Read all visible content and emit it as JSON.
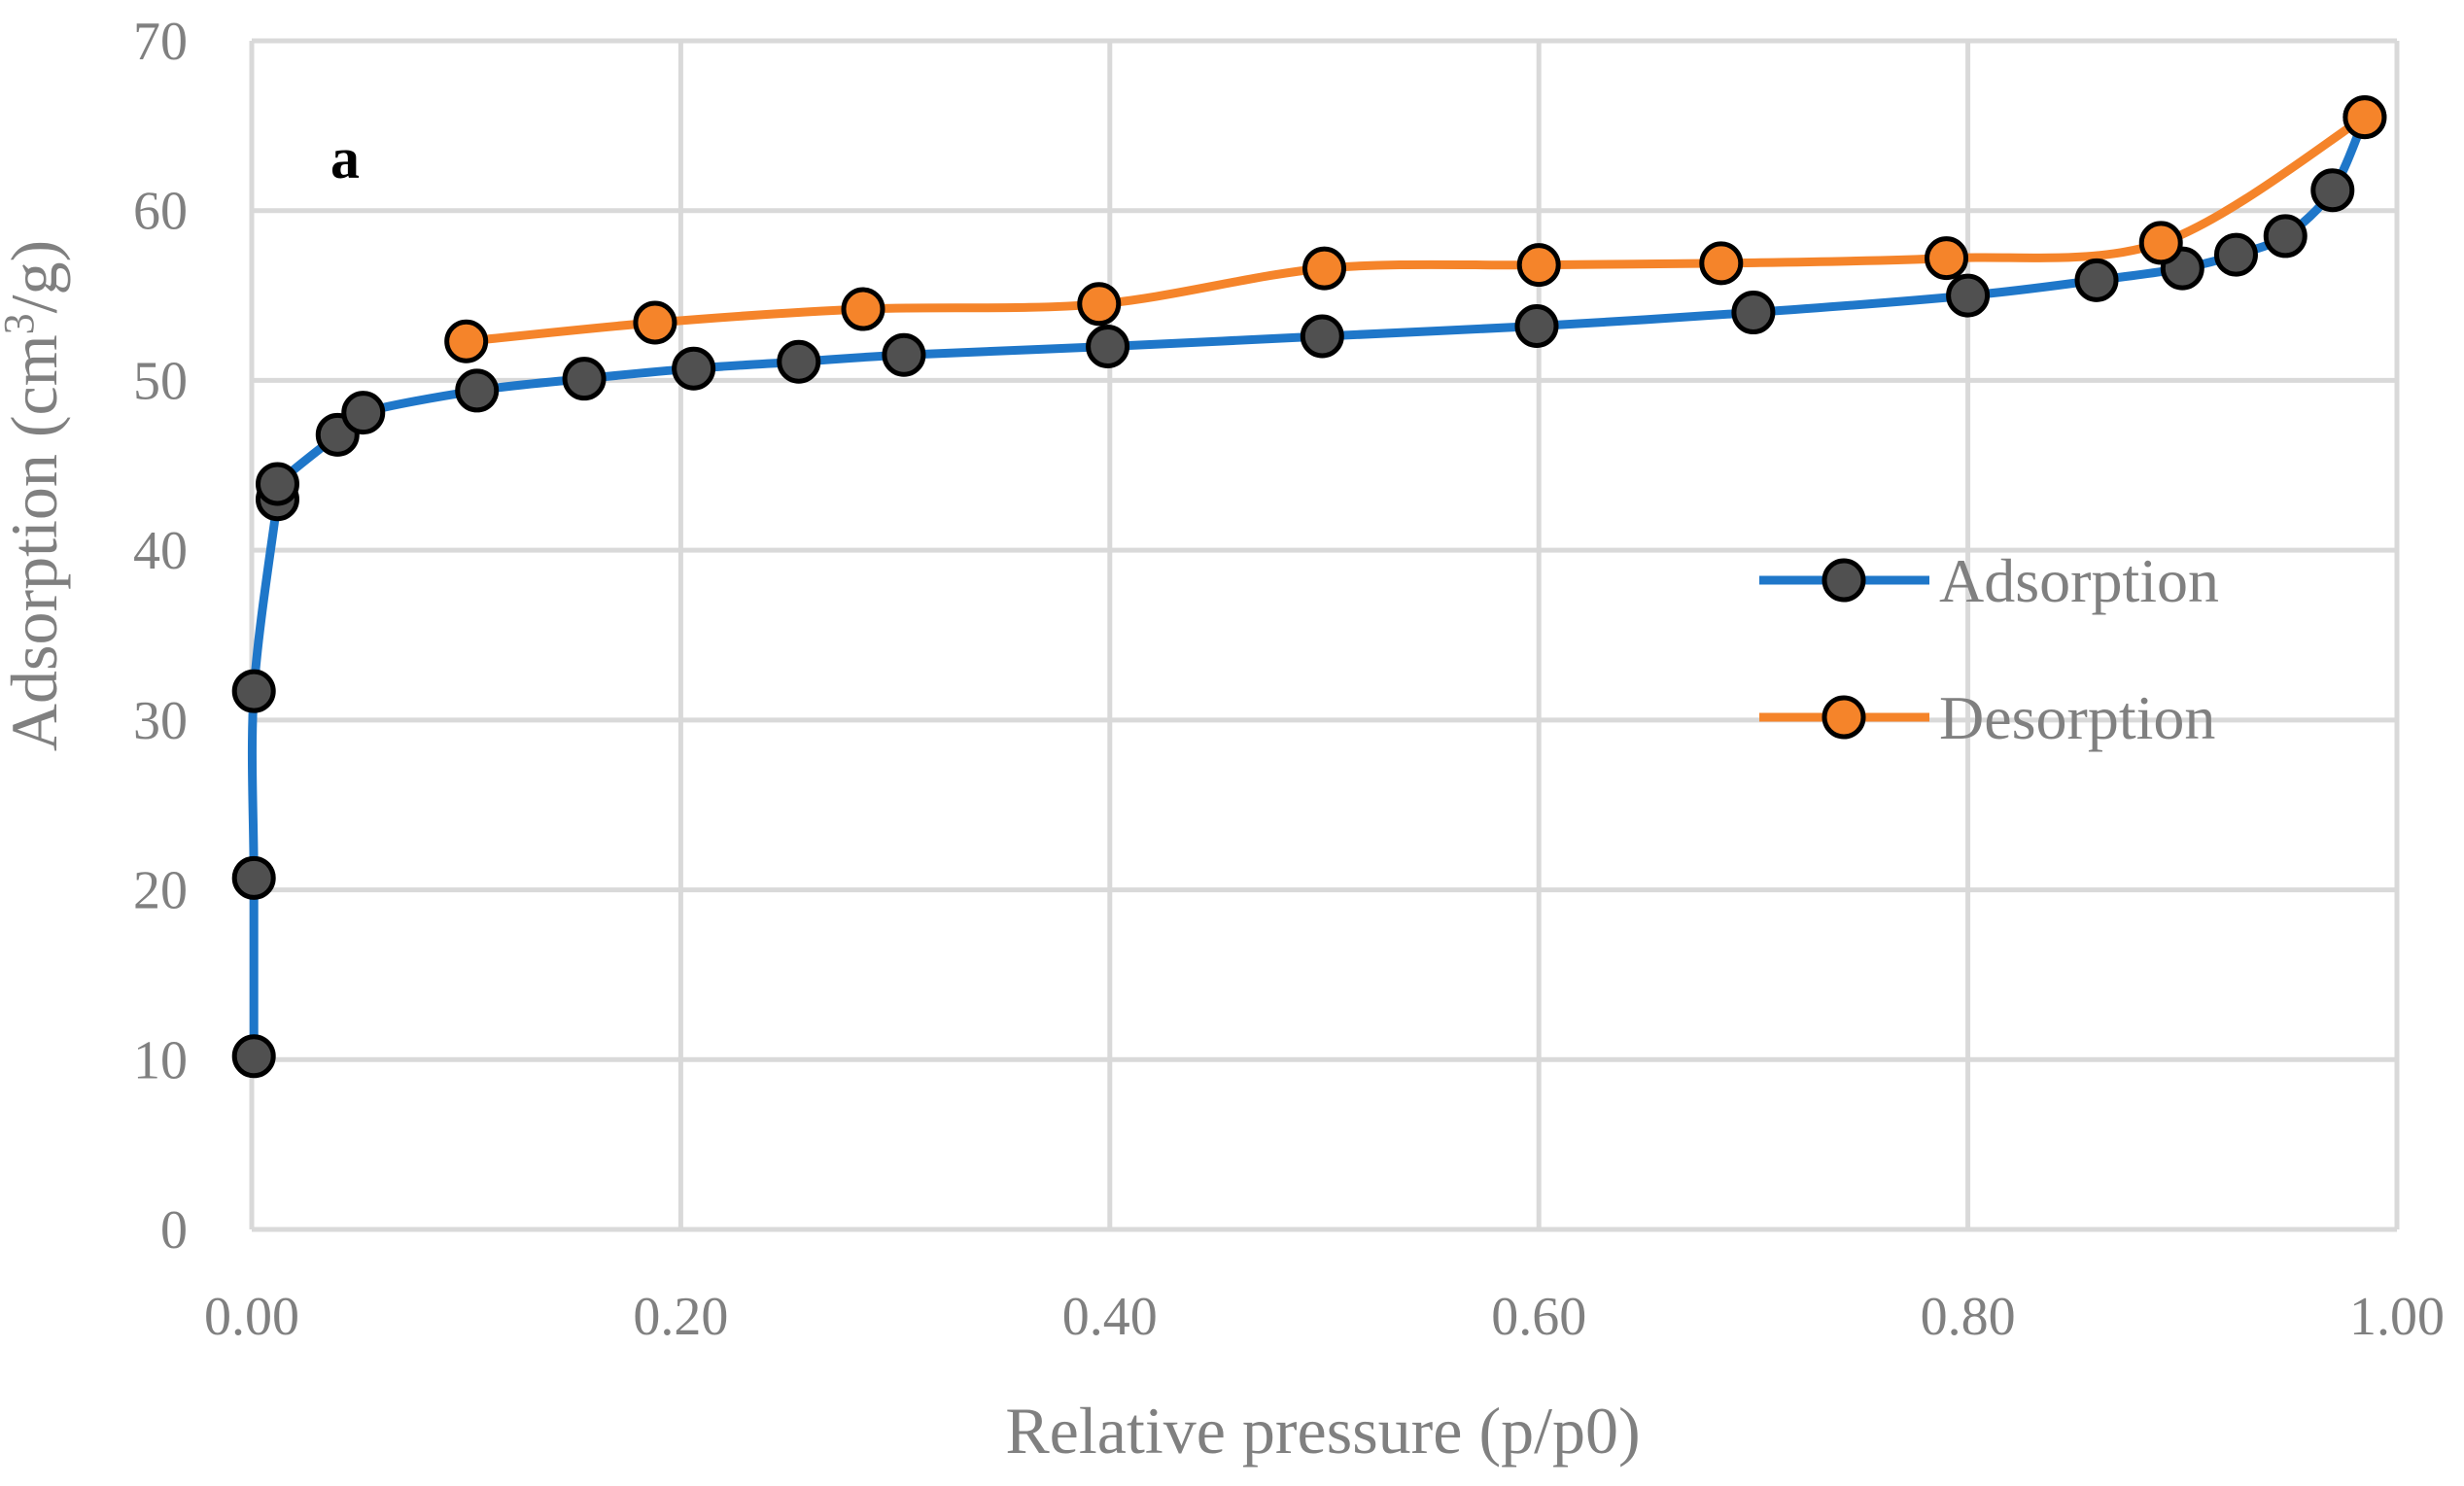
{
  "chart_data": {
    "type": "line",
    "panel_label": "a",
    "xlabel": "Relative pressure (p/p0)",
    "ylabel_main": "Adsorption (cm",
    "ylabel_sup": "3",
    "ylabel_tail": "/g)",
    "xlim": [
      0,
      1.0
    ],
    "ylim": [
      0,
      70
    ],
    "x_ticks": [
      0,
      0.2,
      0.4,
      0.6,
      0.8,
      1.0
    ],
    "x_tick_labels": [
      "0.00",
      "0.20",
      "0.40",
      "0.60",
      "0.80",
      "1.00"
    ],
    "y_ticks": [
      0,
      10,
      20,
      30,
      40,
      50,
      60,
      70
    ],
    "y_tick_labels": [
      "0",
      "10",
      "20",
      "30",
      "40",
      "50",
      "60",
      "70"
    ],
    "grid": true,
    "legend_position": "right-middle",
    "series": [
      {
        "name": "Adsorption",
        "line_color": "#1F77C9",
        "marker_color": "#505050",
        "x": [
          0.001,
          0.001,
          0.001,
          0.012,
          0.012,
          0.04,
          0.052,
          0.105,
          0.155,
          0.206,
          0.255,
          0.304,
          0.399,
          0.499,
          0.599,
          0.7,
          0.8,
          0.86,
          0.9,
          0.925,
          0.948,
          0.97,
          0.985
        ],
        "y": [
          10.2,
          20.7,
          31.7,
          43.0,
          43.9,
          46.8,
          48.1,
          49.4,
          50.1,
          50.7,
          51.1,
          51.5,
          52.0,
          52.6,
          53.2,
          54.0,
          55.0,
          55.9,
          56.6,
          57.4,
          58.5,
          61.2,
          65.5
        ]
      },
      {
        "name": "Desorption",
        "line_color": "#F5842A",
        "marker_color": "#F5842A",
        "x": [
          0.1,
          0.188,
          0.285,
          0.395,
          0.5,
          0.6,
          0.685,
          0.79,
          0.89,
          0.985
        ],
        "y": [
          52.3,
          53.4,
          54.2,
          54.5,
          56.6,
          56.8,
          56.9,
          57.2,
          58.1,
          65.5
        ]
      }
    ]
  }
}
